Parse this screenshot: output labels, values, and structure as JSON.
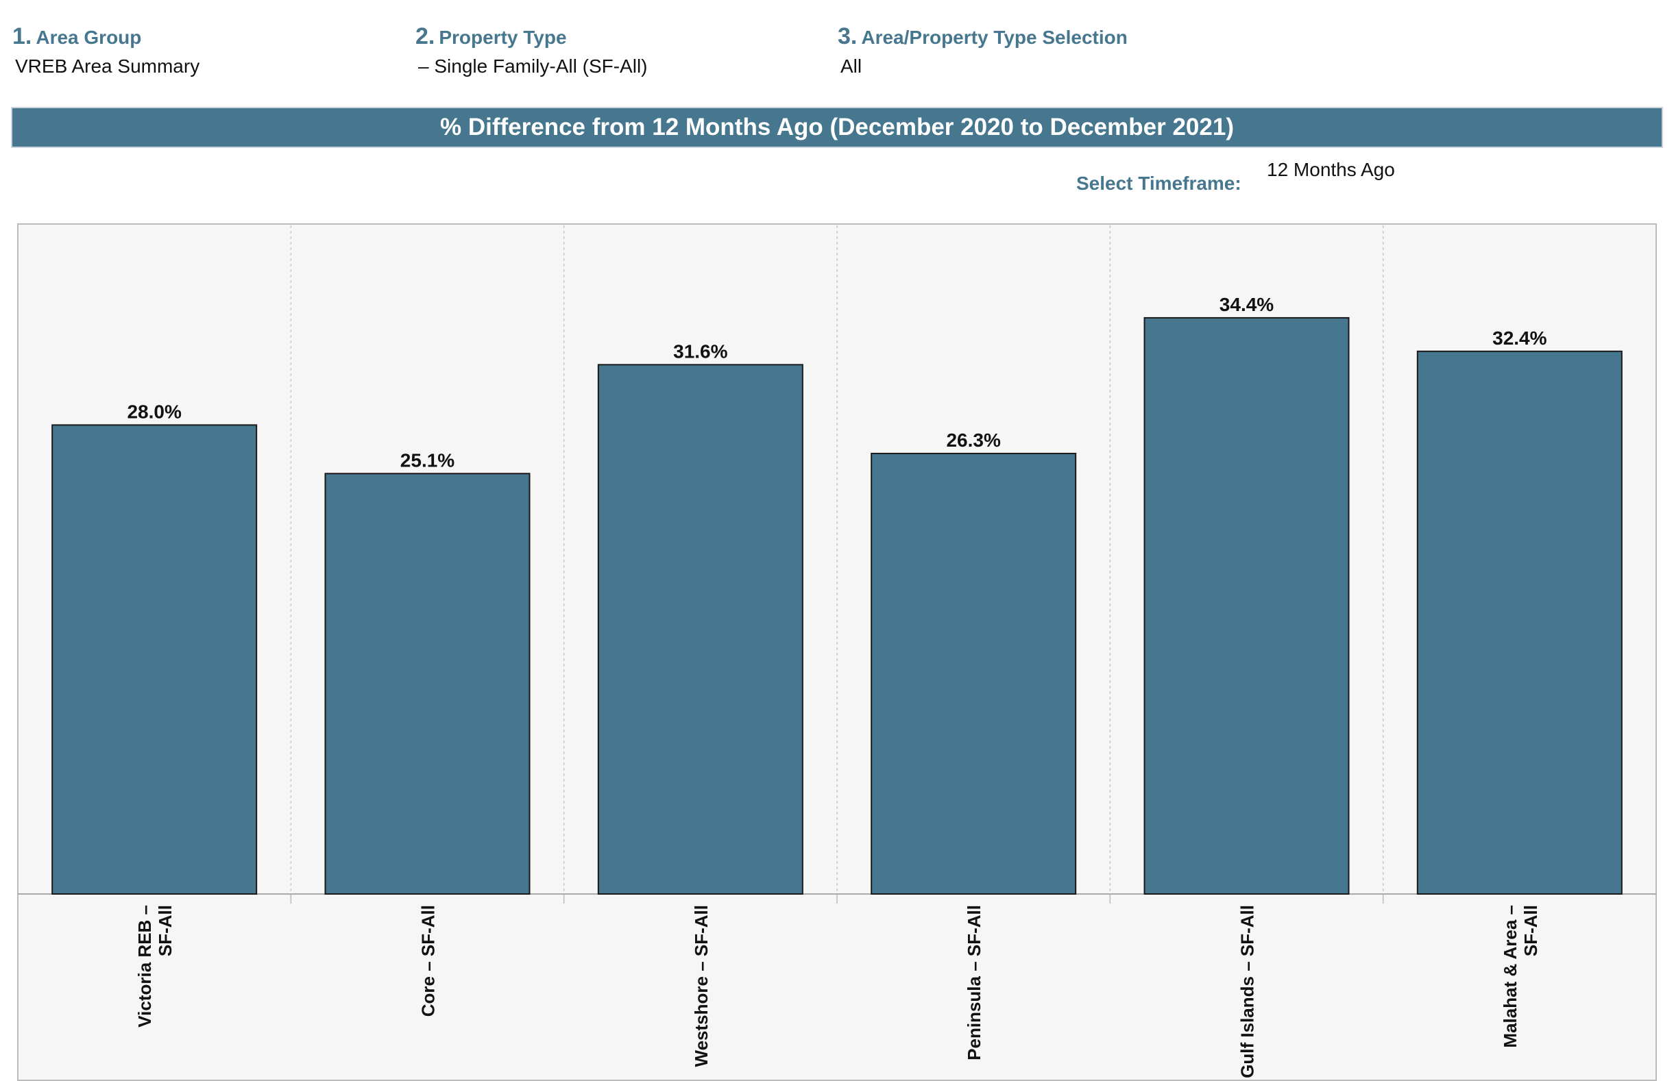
{
  "filters": [
    {
      "number": "1.",
      "label": "Area Group",
      "value": "VREB Area Summary"
    },
    {
      "number": "2.",
      "label": "Property Type",
      "value": "– Single Family-All (SF-All)"
    },
    {
      "number": "3.",
      "label": "Area/Property Type Selection",
      "value": "All"
    }
  ],
  "banner": {
    "title": "% Difference from 12 Months Ago (December 2020 to December 2021)"
  },
  "timeframe": {
    "label": "Select Timeframe:",
    "value": "12 Months Ago"
  },
  "colors": {
    "bar": "#46778f",
    "bar_stroke": "#1a1a1a",
    "plot_bg": "#f6f6f6",
    "accent": "#46778f"
  },
  "chart_data": {
    "type": "bar",
    "categories": [
      [
        "Victoria REB –",
        "SF-All"
      ],
      [
        "Core – SF-All"
      ],
      [
        "Westshore – SF-All"
      ],
      [
        "Peninsula – SF-All"
      ],
      [
        "Gulf Islands – SF-All"
      ],
      [
        "Malahat & Area –",
        "SF-All"
      ]
    ],
    "values": [
      28.0,
      25.1,
      31.6,
      26.3,
      34.4,
      32.4
    ],
    "labels": [
      "28.0%",
      "25.1%",
      "31.6%",
      "26.3%",
      "34.4%",
      "32.4%"
    ],
    "ylim": [
      0,
      40
    ],
    "grid": "vertical-dashed"
  }
}
